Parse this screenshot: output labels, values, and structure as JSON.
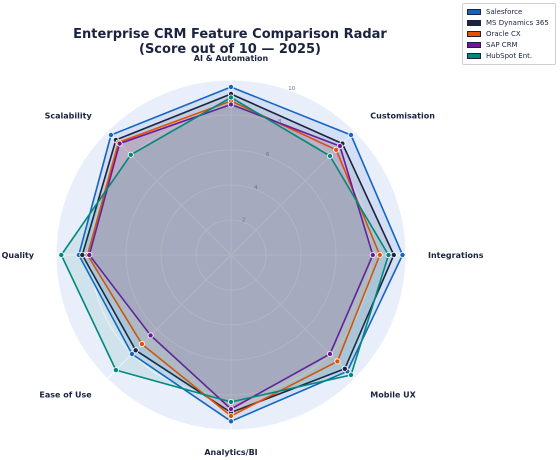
{
  "chart_data": {
    "type": "radar",
    "title_lines": [
      "Enterprise CRM Feature Comparison Radar",
      "(Score out of 10 — 2025)"
    ],
    "axes": [
      "AI & Automation",
      "Customisation",
      "Integrations",
      "Mobile UX",
      "Analytics/BI",
      "Ease of Use",
      "Support Quality",
      "Scalability"
    ],
    "rmax": 10,
    "ticks": [
      2,
      4,
      6,
      8,
      10
    ],
    "tick_labels": [
      "2",
      "4",
      "6",
      "8",
      "10"
    ],
    "grid": true,
    "legend_position": "top-right outside",
    "series": [
      {
        "name": "Salesforce",
        "color": "#1565c0",
        "values": [
          9.6,
          9.7,
          9.8,
          9.4,
          9.5,
          8.0,
          8.7,
          9.7
        ]
      },
      {
        "name": "MS Dynamics 365",
        "color": "#1b2340",
        "values": [
          9.2,
          9.0,
          9.3,
          9.2,
          9.0,
          7.7,
          8.5,
          9.3
        ]
      },
      {
        "name": "Oracle CX",
        "color": "#e65100",
        "values": [
          8.8,
          8.5,
          8.5,
          8.6,
          9.2,
          7.2,
          8.2,
          9.1
        ]
      },
      {
        "name": "SAP CRM",
        "color": "#6a1b9a",
        "values": [
          8.6,
          8.8,
          8.1,
          8.0,
          8.8,
          6.5,
          8.1,
          9.0
        ]
      },
      {
        "name": "HubSpot Ent.",
        "color": "#00897b",
        "values": [
          9.0,
          8.0,
          9.0,
          9.7,
          8.4,
          9.3,
          9.7,
          8.1
        ]
      }
    ]
  }
}
